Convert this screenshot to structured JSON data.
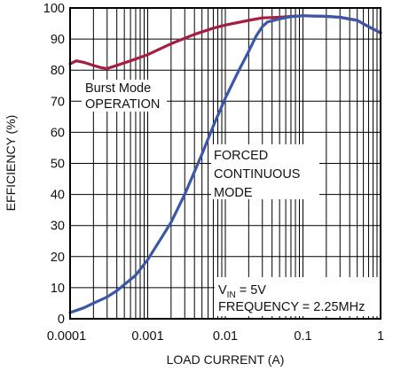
{
  "chart_data": {
    "type": "line",
    "title": "",
    "xlabel": "LOAD CURRENT (A)",
    "ylabel": "EFFICIENCY (%)",
    "xscale": "log",
    "xlim": [
      0.0001,
      1
    ],
    "ylim": [
      0,
      100
    ],
    "xticks": [
      0.0001,
      0.001,
      0.01,
      0.1,
      1
    ],
    "xtick_labels": [
      "0.0001",
      "0.001",
      "0.01",
      "0.1",
      "1"
    ],
    "yticks": [
      0,
      10,
      20,
      30,
      40,
      50,
      60,
      70,
      80,
      90,
      100
    ],
    "ytick_labels": [
      "0",
      "10",
      "20",
      "30",
      "40",
      "50",
      "60",
      "70",
      "80",
      "90",
      "100"
    ],
    "grid": true,
    "series": [
      {
        "color": "#a51e3f",
        "points": [
          [
            0.0001,
            82
          ],
          [
            0.00012,
            83
          ],
          [
            0.00015,
            82.5
          ],
          [
            0.0002,
            81.5
          ],
          [
            0.00025,
            80.8
          ],
          [
            0.0003,
            80.5
          ],
          [
            0.0004,
            81.5
          ],
          [
            0.0006,
            83
          ],
          [
            0.001,
            85
          ],
          [
            0.002,
            88.5
          ],
          [
            0.004,
            91.5
          ],
          [
            0.007,
            93.5
          ],
          [
            0.01,
            94.5
          ],
          [
            0.02,
            96
          ],
          [
            0.03,
            96.8
          ],
          [
            0.05,
            97
          ],
          [
            0.07,
            97.3
          ],
          [
            0.1,
            97.5
          ],
          [
            0.2,
            97.3
          ],
          [
            0.3,
            97
          ],
          [
            0.5,
            96
          ],
          [
            0.7,
            94
          ],
          [
            1,
            92
          ]
        ]
      },
      {
        "color": "#3a57a8",
        "points": [
          [
            0.0001,
            2
          ],
          [
            0.00015,
            3.5
          ],
          [
            0.0002,
            5
          ],
          [
            0.0003,
            7
          ],
          [
            0.0004,
            9
          ],
          [
            0.0005,
            11
          ],
          [
            0.0007,
            14
          ],
          [
            0.001,
            19
          ],
          [
            0.0015,
            26
          ],
          [
            0.002,
            31
          ],
          [
            0.003,
            40
          ],
          [
            0.005,
            53
          ],
          [
            0.007,
            62
          ],
          [
            0.01,
            71
          ],
          [
            0.015,
            80
          ],
          [
            0.02,
            86
          ],
          [
            0.025,
            91
          ],
          [
            0.03,
            94
          ],
          [
            0.035,
            95.5
          ],
          [
            0.05,
            96.5
          ],
          [
            0.07,
            97.2
          ],
          [
            0.1,
            97.5
          ],
          [
            0.2,
            97.3
          ],
          [
            0.3,
            97
          ],
          [
            0.5,
            96
          ],
          [
            0.7,
            94
          ],
          [
            1,
            92
          ]
        ]
      }
    ],
    "annotations": {
      "burst_line1": "Burst Mode",
      "burst_line2": "OPERATION",
      "forced_line1": "FORCED",
      "forced_line2": "CONTINUOUS",
      "forced_line3": "MODE",
      "vin_v": "V",
      "vin_sub": "IN",
      "vin_rest": " = 5V",
      "frequency": "FREQUENCY = 2.25MHz"
    }
  }
}
